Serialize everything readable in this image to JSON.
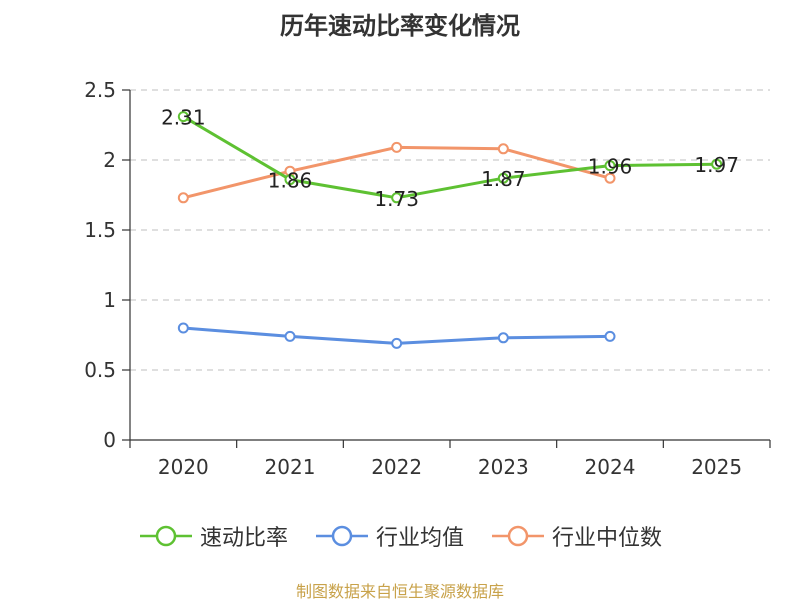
{
  "colors": {
    "accent": "#c8a24a"
  },
  "chart_data": {
    "type": "line",
    "title": "历年速动比率变化情况",
    "categories": [
      "2020",
      "2021",
      "2022",
      "2023",
      "2024",
      "2025"
    ],
    "ylim": [
      0,
      2.5
    ],
    "yticks": [
      "0",
      "0.5",
      "1",
      "1.5",
      "2",
      "2.5"
    ],
    "grid": true,
    "legend_position": "bottom",
    "source": "制图数据来自恒生聚源数据库",
    "series": [
      {
        "name": "速动比率",
        "color": "#5ec132",
        "values": [
          2.31,
          1.86,
          1.73,
          1.87,
          1.96,
          1.97
        ],
        "labels": [
          "2.31",
          "1.86",
          "1.73",
          "1.87",
          "1.96",
          "1.97"
        ]
      },
      {
        "name": "行业均值",
        "color": "#5b8ee0",
        "values": [
          0.8,
          0.74,
          0.69,
          0.73,
          0.74,
          null
        ]
      },
      {
        "name": "行业中位数",
        "color": "#f2956a",
        "values": [
          1.73,
          1.92,
          2.09,
          2.08,
          1.87,
          null
        ]
      }
    ]
  }
}
